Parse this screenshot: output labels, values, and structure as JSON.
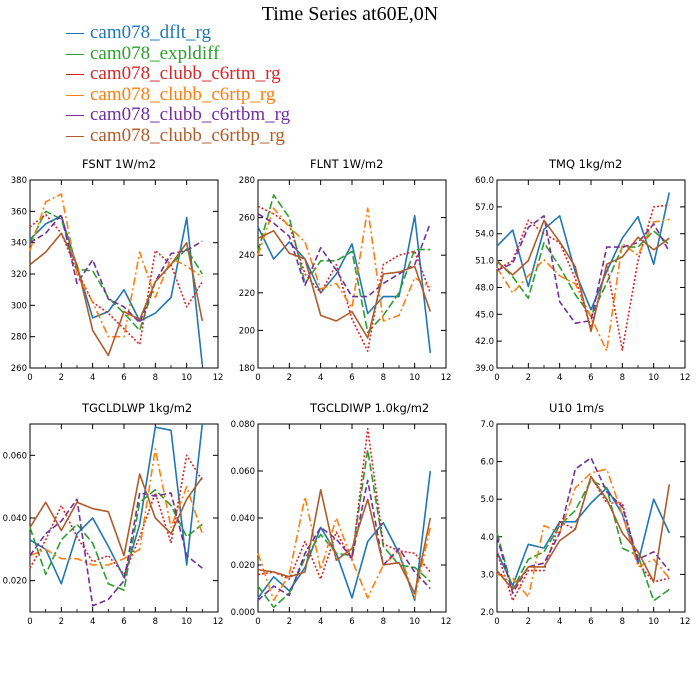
{
  "title": "Time Series at60E,0N",
  "legend": [
    {
      "name": "cam078_dflt_rg",
      "color": "#1f77b4",
      "dash": ""
    },
    {
      "name": "cam078_expldiff",
      "color": "#2ca02c",
      "dash": "8,3"
    },
    {
      "name": "cam078_clubb_c6rtm_rg",
      "color": "#d62728",
      "dash": "2,2"
    },
    {
      "name": "cam078_clubb_c6rtp_rg",
      "color": "#ff7f0e",
      "dash": "8,3,2,3"
    },
    {
      "name": "cam078_clubb_c6rtbm_rg",
      "color": "#7030a0",
      "dash": "6,3"
    },
    {
      "name": "cam078_clubb_c6rtbp_rg",
      "color": "#b05c2a",
      "dash": ""
    }
  ],
  "chart_data": [
    {
      "type": "line",
      "title": "FSNT   1W/m2",
      "xlim": [
        0,
        12
      ],
      "xticks": [
        0,
        2,
        4,
        6,
        8,
        10,
        12
      ],
      "ylim": [
        260,
        380
      ],
      "yticks": [
        "260",
        "280",
        "300",
        "320",
        "340",
        "360",
        "380"
      ],
      "x": [
        0,
        1,
        2,
        3,
        4,
        5,
        6,
        7,
        8,
        9,
        10,
        11
      ],
      "series": [
        {
          "name": "cam078_dflt_rg",
          "values": [
            342,
            352,
            357,
            325,
            292,
            296,
            310,
            290,
            295,
            305,
            356,
            262
          ]
        },
        {
          "name": "cam078_expldiff",
          "values": [
            340,
            360,
            355,
            323,
            322,
            305,
            295,
            284,
            315,
            326,
            336,
            320
          ]
        },
        {
          "name": "cam078_clubb_c6rtm_rg",
          "values": [
            350,
            358,
            346,
            322,
            302,
            295,
            285,
            275,
            335,
            326,
            299,
            315
          ]
        },
        {
          "name": "cam078_clubb_c6rtp_rg",
          "values": [
            335,
            366,
            371,
            320,
            302,
            280,
            280,
            334,
            305,
            330,
            325,
            318
          ]
        },
        {
          "name": "cam078_clubb_c6rtbm_rg",
          "values": [
            340,
            346,
            358,
            314,
            329,
            304,
            299,
            289,
            315,
            333,
            335,
            341
          ]
        },
        {
          "name": "cam078_clubb_c6rtbp_rg",
          "values": [
            326,
            334,
            346,
            326,
            284,
            268,
            296,
            291,
            315,
            326,
            340,
            290
          ]
        }
      ]
    },
    {
      "type": "line",
      "title": "FLNT   1W/m2",
      "xlim": [
        0,
        12
      ],
      "xticks": [
        0,
        2,
        4,
        6,
        8,
        10,
        12
      ],
      "ylim": [
        180,
        280
      ],
      "yticks": [
        "180",
        "200",
        "220",
        "240",
        "260",
        "280"
      ],
      "x": [
        0,
        1,
        2,
        3,
        4,
        5,
        6,
        7,
        8,
        9,
        10,
        11
      ],
      "series": [
        {
          "name": "cam078_dflt_rg",
          "values": [
            255,
            238,
            247,
            238,
            220,
            230,
            246,
            209,
            218,
            218,
            261,
            188
          ]
        },
        {
          "name": "cam078_expldiff",
          "values": [
            242,
            272,
            260,
            225,
            237,
            237,
            242,
            199,
            208,
            220,
            243,
            243
          ]
        },
        {
          "name": "cam078_clubb_c6rtm_rg",
          "values": [
            266,
            262,
            256,
            230,
            220,
            235,
            206,
            189,
            235,
            240,
            242,
            220
          ]
        },
        {
          "name": "cam078_clubb_c6rtp_rg",
          "values": [
            240,
            265,
            255,
            247,
            222,
            225,
            212,
            265,
            205,
            208,
            228,
            223
          ]
        },
        {
          "name": "cam078_clubb_c6rtbm_rg",
          "values": [
            262,
            257,
            250,
            224,
            244,
            232,
            218,
            218,
            225,
            230,
            235,
            257
          ]
        },
        {
          "name": "cam078_clubb_c6rtbp_rg",
          "values": [
            249,
            253,
            241,
            238,
            208,
            205,
            210,
            196,
            230,
            231,
            234,
            210
          ]
        }
      ]
    },
    {
      "type": "line",
      "title": "TMQ   1kg/m2",
      "xlim": [
        0,
        12
      ],
      "xticks": [
        0,
        2,
        4,
        6,
        8,
        10,
        12
      ],
      "ylim": [
        39,
        60
      ],
      "yticks": [
        "39.0",
        "42.0",
        "45.0",
        "48.0",
        "51.0",
        "54.0",
        "57.0",
        "60.0"
      ],
      "x": [
        0,
        1,
        2,
        3,
        4,
        5,
        6,
        7,
        8,
        9,
        10,
        11
      ],
      "series": [
        {
          "name": "cam078_dflt_rg",
          "values": [
            52.6,
            54.4,
            48.1,
            54.5,
            56.0,
            49.7,
            45.5,
            49.8,
            53.5,
            55.9,
            50.6,
            58.6
          ]
        },
        {
          "name": "cam078_expldiff",
          "values": [
            51.0,
            49.2,
            46.8,
            53.0,
            50.3,
            47.2,
            44.8,
            48.5,
            52.5,
            52.5,
            54.3,
            52.8
          ]
        },
        {
          "name": "cam078_clubb_c6rtm_rg",
          "values": [
            50.0,
            51.0,
            55.5,
            54.0,
            53.0,
            49.0,
            43.5,
            50.5,
            41.0,
            51.0,
            57.0,
            57.2
          ]
        },
        {
          "name": "cam078_clubb_c6rtp_rg",
          "values": [
            50.2,
            47.4,
            49.3,
            51.1,
            49.3,
            48.4,
            44.7,
            40.9,
            52.9,
            51.6,
            55.3,
            55.6
          ]
        },
        {
          "name": "cam078_clubb_c6rtbm_rg",
          "values": [
            49.9,
            50.7,
            54.7,
            56.0,
            46.4,
            44.0,
            44.3,
            52.5,
            52.5,
            53.0,
            55.1,
            52.0
          ]
        },
        {
          "name": "cam078_clubb_c6rtbp_rg",
          "values": [
            50.9,
            49.4,
            51.0,
            55.5,
            53.1,
            50.3,
            43.1,
            50.6,
            51.4,
            53.6,
            52.2,
            53.5
          ]
        }
      ]
    },
    {
      "type": "line",
      "title": "TGCLDLWP   1kg/m2",
      "xlim": [
        0,
        12
      ],
      "xticks": [
        0,
        2,
        4,
        6,
        8,
        10,
        12
      ],
      "ylim": [
        0.01,
        0.07
      ],
      "yticks": [
        "0.020",
        "0.040",
        "0.060"
      ],
      "ytickvals": [
        0.02,
        0.04,
        0.06
      ],
      "x": [
        0,
        1,
        2,
        3,
        4,
        5,
        6,
        7,
        8,
        9,
        10,
        11
      ],
      "series": [
        {
          "name": "cam078_dflt_rg",
          "values": [
            0.033,
            0.03,
            0.019,
            0.035,
            0.04,
            0.031,
            0.021,
            0.038,
            0.069,
            0.068,
            0.025,
            0.07
          ]
        },
        {
          "name": "cam078_expldiff",
          "values": [
            0.037,
            0.022,
            0.033,
            0.038,
            0.032,
            0.019,
            0.017,
            0.045,
            0.049,
            0.044,
            0.034,
            0.038
          ]
        },
        {
          "name": "cam078_clubb_c6rtm_rg",
          "values": [
            0.024,
            0.033,
            0.044,
            0.034,
            0.026,
            0.028,
            0.022,
            0.034,
            0.048,
            0.032,
            0.06,
            0.052
          ]
        },
        {
          "name": "cam078_clubb_c6rtp_rg",
          "values": [
            0.028,
            0.03,
            0.027,
            0.027,
            0.025,
            0.025,
            0.027,
            0.03,
            0.062,
            0.037,
            0.05,
            0.035
          ]
        },
        {
          "name": "cam078_clubb_c6rtbm_rg",
          "values": [
            0.028,
            0.035,
            0.039,
            0.046,
            0.012,
            0.014,
            0.02,
            0.048,
            0.047,
            0.048,
            0.028,
            0.024
          ]
        },
        {
          "name": "cam078_clubb_c6rtbp_rg",
          "values": [
            0.037,
            0.045,
            0.036,
            0.045,
            0.043,
            0.042,
            0.028,
            0.054,
            0.04,
            0.035,
            0.046,
            0.053
          ]
        }
      ]
    },
    {
      "type": "line",
      "title": "TGCLDIWP   1.0kg/m2",
      "xlim": [
        0,
        12
      ],
      "xticks": [
        0,
        2,
        4,
        6,
        8,
        10,
        12
      ],
      "ylim": [
        0.0,
        0.08
      ],
      "yticks": [
        "0.000",
        "0.020",
        "0.040",
        "0.060",
        "0.080"
      ],
      "x": [
        0,
        1,
        2,
        3,
        4,
        5,
        6,
        7,
        8,
        9,
        10,
        11
      ],
      "series": [
        {
          "name": "cam078_dflt_rg",
          "values": [
            0.006,
            0.015,
            0.009,
            0.019,
            0.036,
            0.025,
            0.006,
            0.03,
            0.038,
            0.025,
            0.005,
            0.06
          ]
        },
        {
          "name": "cam078_expldiff",
          "values": [
            0.011,
            0.002,
            0.008,
            0.023,
            0.033,
            0.025,
            0.024,
            0.069,
            0.028,
            0.02,
            0.019,
            0.013
          ]
        },
        {
          "name": "cam078_clubb_c6rtm_rg",
          "values": [
            0.016,
            0.017,
            0.014,
            0.03,
            0.014,
            0.034,
            0.022,
            0.078,
            0.029,
            0.026,
            0.025,
            0.017
          ]
        },
        {
          "name": "cam078_clubb_c6rtp_rg",
          "values": [
            0.025,
            0.005,
            0.016,
            0.049,
            0.018,
            0.04,
            0.022,
            0.006,
            0.02,
            0.026,
            0.006,
            0.036
          ]
        },
        {
          "name": "cam078_clubb_c6rtbm_rg",
          "values": [
            0.005,
            0.011,
            0.007,
            0.025,
            0.036,
            0.031,
            0.023,
            0.056,
            0.02,
            0.027,
            0.017,
            0.01
          ]
        },
        {
          "name": "cam078_clubb_c6rtbp_rg",
          "values": [
            0.018,
            0.017,
            0.015,
            0.017,
            0.052,
            0.022,
            0.027,
            0.048,
            0.02,
            0.021,
            0.008,
            0.04
          ]
        }
      ]
    },
    {
      "type": "line",
      "title": "U10   1m/s",
      "xlim": [
        0,
        12
      ],
      "xticks": [
        0,
        2,
        4,
        6,
        8,
        10,
        12
      ],
      "ylim": [
        2.0,
        7.0
      ],
      "yticks": [
        "2.0",
        "3.0",
        "4.0",
        "5.0",
        "6.0",
        "7.0"
      ],
      "x": [
        0,
        1,
        2,
        3,
        4,
        5,
        6,
        7,
        8,
        9,
        10,
        11
      ],
      "series": [
        {
          "name": "cam078_dflt_rg",
          "values": [
            3.6,
            2.7,
            3.8,
            3.7,
            4.4,
            4.4,
            4.9,
            5.3,
            4.6,
            3.3,
            5.0,
            4.1
          ]
        },
        {
          "name": "cam078_expldiff",
          "values": [
            4.1,
            2.6,
            3.4,
            3.6,
            4.3,
            4.7,
            5.5,
            5.3,
            3.7,
            3.5,
            2.3,
            2.6
          ]
        },
        {
          "name": "cam078_clubb_c6rtm_rg",
          "values": [
            3.6,
            2.3,
            3.1,
            3.1,
            4.4,
            4.2,
            5.6,
            4.9,
            4.9,
            3.3,
            2.8,
            2.9
          ]
        },
        {
          "name": "cam078_clubb_c6rtp_rg",
          "values": [
            3.0,
            2.9,
            2.4,
            4.3,
            4.1,
            5.3,
            5.7,
            5.8,
            4.6,
            3.2,
            3.4,
            2.9
          ]
        },
        {
          "name": "cam078_clubb_c6rtbm_rg",
          "values": [
            4.0,
            2.5,
            3.2,
            3.3,
            4.1,
            5.8,
            6.1,
            5.2,
            4.8,
            3.4,
            3.6,
            3.1
          ]
        },
        {
          "name": "cam078_clubb_c6rtbp_rg",
          "values": [
            3.1,
            2.6,
            3.2,
            3.2,
            3.9,
            4.2,
            5.6,
            5.0,
            4.1,
            3.6,
            2.8,
            5.4
          ]
        }
      ]
    }
  ]
}
